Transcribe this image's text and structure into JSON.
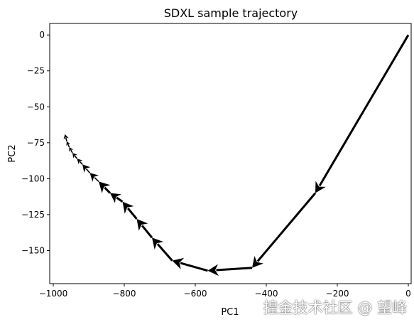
{
  "chart_data": {
    "type": "quiver",
    "title": "SDXL sample trajectory",
    "xlabel": "PC1",
    "ylabel": "PC2",
    "xlim": [
      -1010,
      8
    ],
    "ylim": [
      -173,
      8
    ],
    "xticks": [
      -1000,
      -800,
      -600,
      -400,
      -200,
      0
    ],
    "yticks": [
      0,
      -25,
      -50,
      -75,
      -100,
      -125,
      -150
    ],
    "xtick_labels": [
      "−1000",
      "−800",
      "−600",
      "−400",
      "−200",
      "0"
    ],
    "ytick_labels": [
      "0",
      "−25",
      "−50",
      "−75",
      "−100",
      "−125",
      "−150"
    ],
    "grid": false,
    "color": "#000000",
    "segments": [
      {
        "x0": 0,
        "y0": 0,
        "x1": -262,
        "y1": -110
      },
      {
        "x0": -262,
        "y0": -110,
        "x1": -440,
        "y1": -162
      },
      {
        "x0": -440,
        "y0": -162,
        "x1": -565,
        "y1": -164
      },
      {
        "x0": -565,
        "y0": -164,
        "x1": -665,
        "y1": -157
      },
      {
        "x0": -665,
        "y0": -157,
        "x1": -722,
        "y1": -141
      },
      {
        "x0": -722,
        "y0": -141,
        "x1": -765,
        "y1": -128
      },
      {
        "x0": -765,
        "y0": -128,
        "x1": -805,
        "y1": -116
      },
      {
        "x0": -805,
        "y0": -116,
        "x1": -840,
        "y1": -110
      },
      {
        "x0": -840,
        "y0": -110,
        "x1": -872,
        "y1": -102
      },
      {
        "x0": -872,
        "y0": -102,
        "x1": -897,
        "y1": -96
      },
      {
        "x0": -897,
        "y0": -96,
        "x1": -918,
        "y1": -90
      },
      {
        "x0": -918,
        "y0": -90,
        "x1": -933,
        "y1": -86
      },
      {
        "x0": -933,
        "y0": -86,
        "x1": -946,
        "y1": -82
      },
      {
        "x0": -946,
        "y0": -82,
        "x1": -955,
        "y1": -78
      },
      {
        "x0": -955,
        "y0": -78,
        "x1": -962,
        "y1": -74
      },
      {
        "x0": -962,
        "y0": -74,
        "x1": -967,
        "y1": -69
      }
    ]
  },
  "watermark": "揘金技术社区 @ 望峰"
}
